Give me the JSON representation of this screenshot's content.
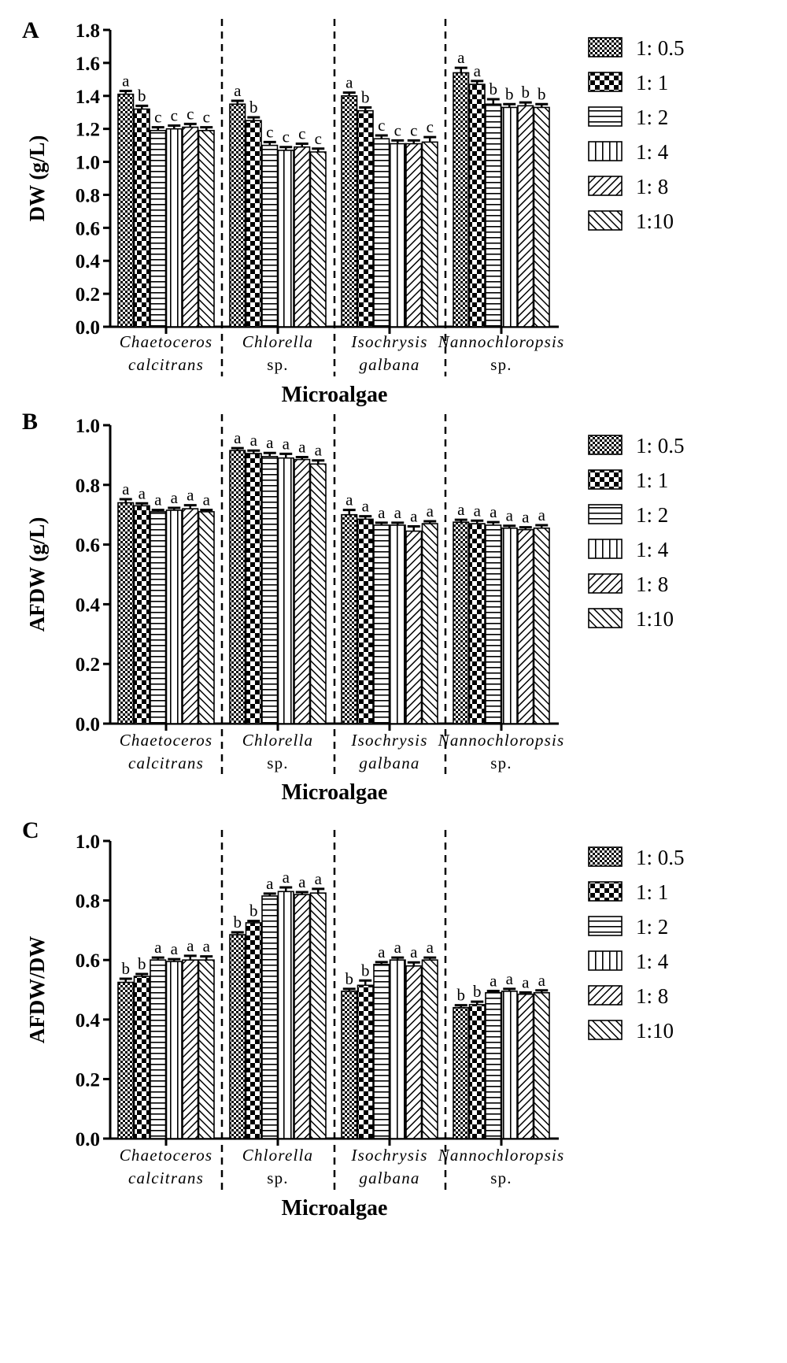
{
  "chart_data": [
    {
      "panel": "A",
      "type": "bar",
      "ylabel": "DW (g/L)",
      "xlabel": "Microalgae",
      "ylim": [
        0,
        1.8
      ],
      "yticks": [
        "0.0",
        "0.2",
        "0.4",
        "0.6",
        "0.8",
        "1.0",
        "1.2",
        "1.4",
        "1.6",
        "1.8"
      ],
      "categories": [
        {
          "line1": "Chaetoceros",
          "line2": "calcitrans",
          "line2_italic": true
        },
        {
          "line1": "Chlorella",
          "line2": "sp.",
          "line2_italic": false
        },
        {
          "line1": "Isochrysis",
          "line2": "galbana",
          "line2_italic": true
        },
        {
          "line1": "Nannochloropsis",
          "line2": "sp.",
          "line2_italic": false
        }
      ],
      "legend": [
        "1: 0.5",
        "1: 1",
        "1: 2",
        "1: 4",
        "1: 8",
        "1:10"
      ],
      "values": [
        [
          1.41,
          1.32,
          1.19,
          1.2,
          1.21,
          1.19
        ],
        [
          1.35,
          1.25,
          1.1,
          1.07,
          1.09,
          1.06
        ],
        [
          1.4,
          1.31,
          1.14,
          1.11,
          1.11,
          1.12
        ],
        [
          1.54,
          1.47,
          1.35,
          1.33,
          1.34,
          1.33
        ]
      ],
      "errors": [
        [
          0.02,
          0.02,
          0.02,
          0.02,
          0.02,
          0.02
        ],
        [
          0.02,
          0.02,
          0.02,
          0.02,
          0.02,
          0.02
        ],
        [
          0.02,
          0.02,
          0.02,
          0.02,
          0.02,
          0.03
        ],
        [
          0.03,
          0.02,
          0.03,
          0.02,
          0.02,
          0.02
        ]
      ],
      "significance": [
        [
          "a",
          "b",
          "c",
          "c",
          "c",
          "c"
        ],
        [
          "a",
          "b",
          "c",
          "c",
          "c",
          "c"
        ],
        [
          "a",
          "b",
          "c",
          "c",
          "c",
          "c"
        ],
        [
          "a",
          "a",
          "b",
          "b",
          "b",
          "b"
        ]
      ]
    },
    {
      "panel": "B",
      "type": "bar",
      "ylabel": "AFDW (g/L)",
      "xlabel": "Microalgae",
      "ylim": [
        0,
        1.0
      ],
      "yticks": [
        "0.0",
        "0.2",
        "0.4",
        "0.6",
        "0.8",
        "1.0"
      ],
      "categories": [
        {
          "line1": "Chaetoceros",
          "line2": "calcitrans",
          "line2_italic": true
        },
        {
          "line1": "Chlorella",
          "line2": "sp.",
          "line2_italic": false
        },
        {
          "line1": "Isochrysis",
          "line2": "galbana",
          "line2_italic": true
        },
        {
          "line1": "Nannochloropsis",
          "line2": "sp.",
          "line2_italic": false
        }
      ],
      "legend": [
        "1: 0.5",
        "1: 1",
        "1: 2",
        "1: 4",
        "1: 8",
        "1:10"
      ],
      "values": [
        [
          0.74,
          0.73,
          0.71,
          0.715,
          0.72,
          0.71
        ],
        [
          0.915,
          0.905,
          0.895,
          0.89,
          0.885,
          0.87
        ],
        [
          0.7,
          0.685,
          0.665,
          0.665,
          0.645,
          0.67
        ],
        [
          0.675,
          0.67,
          0.665,
          0.655,
          0.65,
          0.655
        ]
      ],
      "errors": [
        [
          0.012,
          0.008,
          0.006,
          0.008,
          0.012,
          0.006
        ],
        [
          0.008,
          0.01,
          0.012,
          0.014,
          0.008,
          0.012
        ],
        [
          0.016,
          0.01,
          0.008,
          0.008,
          0.016,
          0.008
        ],
        [
          0.008,
          0.01,
          0.01,
          0.008,
          0.008,
          0.01
        ]
      ],
      "significance": [
        [
          "a",
          "a",
          "a",
          "a",
          "a",
          "a"
        ],
        [
          "a",
          "a",
          "a",
          "a",
          "a",
          "a"
        ],
        [
          "a",
          "a",
          "a",
          "a",
          "a",
          "a"
        ],
        [
          "a",
          "a",
          "a",
          "a",
          "a",
          "a"
        ]
      ]
    },
    {
      "panel": "C",
      "type": "bar",
      "ylabel": "AFDW/DW",
      "xlabel": "Microalgae",
      "ylim": [
        0,
        1.0
      ],
      "yticks": [
        "0.0",
        "0.2",
        "0.4",
        "0.6",
        "0.8",
        "1.0"
      ],
      "categories": [
        {
          "line1": "Chaetoceros",
          "line2": "calcitrans",
          "line2_italic": true
        },
        {
          "line1": "Chlorella",
          "line2": "sp.",
          "line2_italic": false
        },
        {
          "line1": "Isochrysis",
          "line2": "galbana",
          "line2_italic": true
        },
        {
          "line1": "Nannochloropsis",
          "line2": "sp.",
          "line2_italic": false
        }
      ],
      "legend": [
        "1: 0.5",
        "1: 1",
        "1: 2",
        "1: 4",
        "1: 8",
        "1:10"
      ],
      "values": [
        [
          0.525,
          0.545,
          0.6,
          0.595,
          0.6,
          0.6
        ],
        [
          0.685,
          0.725,
          0.815,
          0.83,
          0.82,
          0.825
        ],
        [
          0.495,
          0.515,
          0.585,
          0.6,
          0.58,
          0.6
        ],
        [
          0.44,
          0.45,
          0.49,
          0.495,
          0.485,
          0.49
        ]
      ],
      "errors": [
        [
          0.012,
          0.008,
          0.008,
          0.008,
          0.014,
          0.012
        ],
        [
          0.008,
          0.006,
          0.008,
          0.014,
          0.008,
          0.014
        ],
        [
          0.008,
          0.016,
          0.008,
          0.008,
          0.012,
          0.008
        ],
        [
          0.008,
          0.01,
          0.006,
          0.008,
          0.006,
          0.008
        ]
      ],
      "significance": [
        [
          "b",
          "b",
          "a",
          "a",
          "a",
          "a"
        ],
        [
          "b",
          "b",
          "a",
          "a",
          "a",
          "a"
        ],
        [
          "b",
          "b",
          "a",
          "a",
          "a",
          "a"
        ],
        [
          "b",
          "b",
          "a",
          "a",
          "a",
          "a"
        ]
      ]
    }
  ]
}
